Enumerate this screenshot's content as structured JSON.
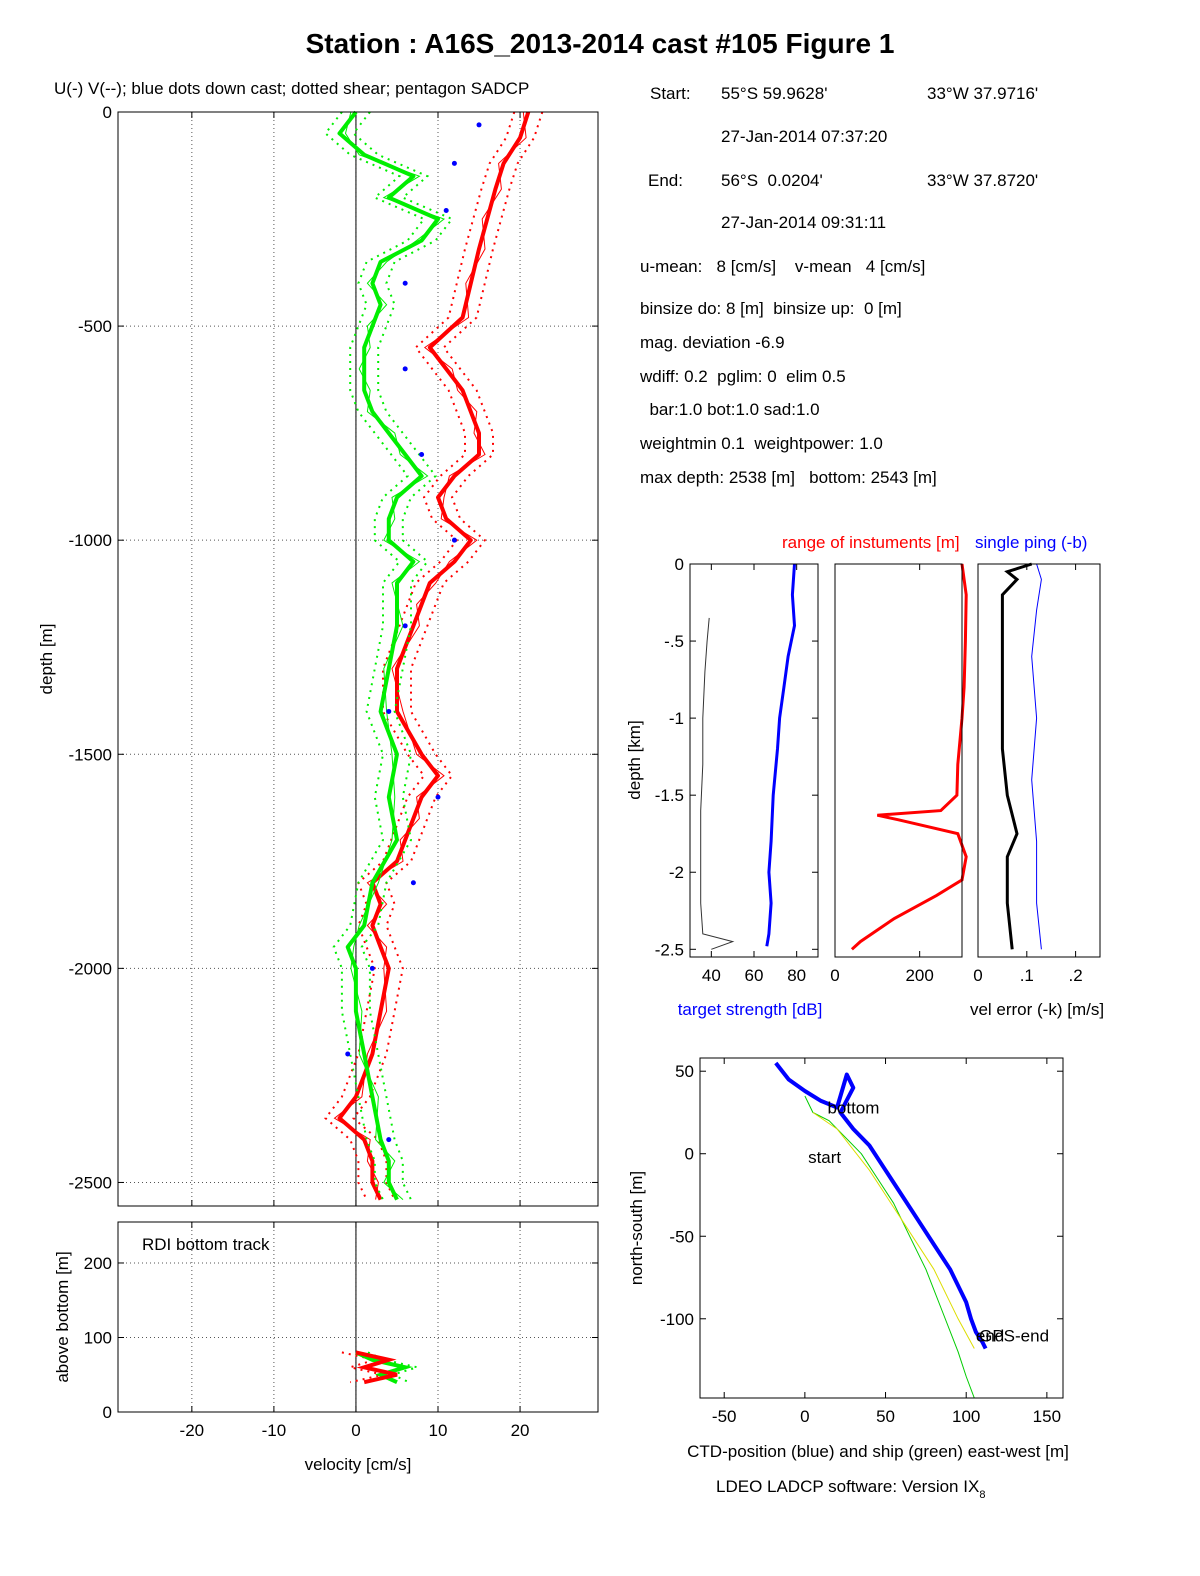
{
  "figure": {
    "title": "Station : A16S_2013-2014 cast #105  Figure 1",
    "subtitle": "U(-) V(--); blue dots down cast; dotted shear; pentagon SADCP",
    "footer": "LDEO LADCP software: Version IX",
    "footer_sub": "8"
  },
  "info": {
    "start_label": "Start:",
    "start_lat": "55°S 59.9628'",
    "start_lon": "33°W 37.9716'",
    "start_time": "27-Jan-2014 07:37:20",
    "end_label": "End:",
    "end_lat": "56°S  0.0204'",
    "end_lon": "33°W 37.8720'",
    "end_time": "27-Jan-2014 09:31:11",
    "means": "u-mean:   8 [cm/s]    v-mean   4 [cm/s]",
    "binsize": "binsize do: 8 [m]  binsize up:  0 [m]",
    "magdev": "mag. deviation -6.9",
    "wdiff": "wdiff: 0.2  pglim: 0  elim 0.5",
    "bar": "  bar:1.0 bot:1.0 sad:1.0",
    "weight": "weightmin 0.1  weightpower: 1.0",
    "depth": "max depth: 2538 [m]   bottom: 2543 [m]"
  },
  "chart_data": [
    {
      "type": "line",
      "id": "velocity-profile",
      "xlabel": "",
      "ylabel": "depth [m]",
      "xlim": [
        -29,
        29.5
      ],
      "ylim": [
        -2555,
        0
      ],
      "xticks": [
        -20,
        -10,
        0,
        10,
        20
      ],
      "yticks": [
        0,
        -500,
        -1000,
        -1500,
        -2000,
        -2500
      ],
      "grid": true,
      "colors": {
        "u": "#ff0000",
        "v": "#00ee00",
        "down": "#0000ff"
      },
      "series": [
        {
          "name": "U",
          "depth": [
            0,
            -60,
            -120,
            -180,
            -250,
            -320,
            -400,
            -480,
            -550,
            -600,
            -650,
            -700,
            -750,
            -800,
            -850,
            -900,
            -950,
            -1000,
            -1050,
            -1100,
            -1150,
            -1200,
            -1300,
            -1400,
            -1500,
            -1550,
            -1600,
            -1650,
            -1700,
            -1750,
            -1800,
            -1850,
            -1900,
            -1950,
            -2000,
            -2100,
            -2200,
            -2300,
            -2350,
            -2400,
            -2450,
            -2500,
            -2540
          ],
          "values": [
            21,
            20,
            18,
            17,
            16,
            15,
            14,
            13,
            9,
            11,
            13,
            14,
            15,
            15,
            12,
            10,
            11,
            14,
            12,
            9,
            8,
            7,
            5,
            5,
            8,
            10,
            8,
            7,
            6,
            5,
            2,
            3,
            2,
            3,
            4,
            3,
            2,
            0,
            -2,
            1,
            2,
            2,
            3
          ]
        },
        {
          "name": "V",
          "depth": [
            0,
            -50,
            -100,
            -150,
            -200,
            -250,
            -300,
            -350,
            -400,
            -450,
            -500,
            -550,
            -600,
            -650,
            -700,
            -750,
            -800,
            -850,
            -900,
            -950,
            -1000,
            -1050,
            -1100,
            -1200,
            -1300,
            -1400,
            -1500,
            -1600,
            -1700,
            -1800,
            -1900,
            -1950,
            -2000,
            -2100,
            -2200,
            -2300,
            -2400,
            -2450,
            -2500,
            -2540
          ],
          "values": [
            0,
            -2,
            1,
            7,
            4,
            10,
            8,
            3,
            2,
            3,
            2,
            1,
            1,
            1,
            2,
            4,
            6,
            8,
            5,
            4,
            4,
            7,
            5,
            5,
            4,
            3,
            5,
            4,
            5,
            2,
            1,
            -1,
            0,
            0,
            1,
            2,
            3,
            4,
            4,
            5
          ]
        },
        {
          "name": "down",
          "depth": [
            -30,
            -120,
            -230,
            -400,
            -600,
            -800,
            -1000,
            -1200,
            -1400,
            -1600,
            -1800,
            -2000,
            -2200,
            -2400
          ],
          "values": [
            15,
            12,
            11,
            6,
            6,
            8,
            12,
            6,
            4,
            10,
            7,
            2,
            -1,
            4
          ]
        }
      ]
    },
    {
      "type": "line",
      "id": "bottom-track",
      "title": "RDI bottom track",
      "xlabel": "velocity [cm/s]",
      "ylabel": "above bottom [m]",
      "xlim": [
        -29,
        29.5
      ],
      "ylim": [
        0,
        255
      ],
      "xticks": [
        -20,
        -10,
        0,
        10,
        20
      ],
      "yticks": [
        0,
        100,
        200
      ],
      "grid": true,
      "series": [
        {
          "name": "U",
          "hab": [
            80,
            70,
            60,
            50,
            40
          ],
          "values": [
            0,
            4,
            1,
            5,
            1
          ]
        },
        {
          "name": "V",
          "hab": [
            80,
            70,
            60,
            50,
            40
          ],
          "values": [
            0,
            2,
            6,
            3,
            5
          ]
        }
      ]
    },
    {
      "type": "line",
      "id": "target-strength",
      "xlabel": "target strength [dB]",
      "ylabel": "depth [km]",
      "xlim": [
        30,
        90
      ],
      "ylim": [
        -2.55,
        0
      ],
      "xticks": [
        40,
        60,
        80
      ],
      "yticks": [
        0,
        -0.5,
        -1,
        -1.5,
        -2,
        -2.5
      ],
      "grid": false,
      "series": [
        {
          "name": "up",
          "color": "#0000ff",
          "depth": [
            0,
            -0.2,
            -0.4,
            -0.6,
            -0.8,
            -1.0,
            -1.2,
            -1.5,
            -1.8,
            -2.0,
            -2.2,
            -2.4,
            -2.48
          ],
          "values": [
            79,
            78,
            79,
            76,
            74,
            72,
            71,
            69,
            68,
            67,
            68,
            67,
            66
          ]
        },
        {
          "name": "down",
          "color": "#333333",
          "depth": [
            -0.35,
            -0.5,
            -0.7,
            -1.0,
            -1.3,
            -1.6,
            -1.9,
            -2.2,
            -2.4,
            -2.45,
            -2.5
          ],
          "values": [
            39,
            38,
            37,
            36,
            36,
            35,
            35,
            35,
            36,
            50,
            40
          ]
        }
      ]
    },
    {
      "type": "line",
      "id": "range",
      "title": "range of instuments [m]",
      "xlim": [
        0,
        300
      ],
      "ylim": [
        -2.55,
        0
      ],
      "xticks": [
        0,
        200
      ],
      "grid": false,
      "series": [
        {
          "name": "range",
          "color": "#ff0000",
          "depth": [
            0,
            -0.2,
            -0.5,
            -0.8,
            -1.0,
            -1.3,
            -1.5,
            -1.6,
            -1.63,
            -1.66,
            -1.75,
            -1.9,
            -2.05,
            -2.15,
            -2.3,
            -2.45,
            -2.5
          ],
          "values": [
            300,
            310,
            308,
            305,
            300,
            290,
            288,
            250,
            100,
            150,
            290,
            310,
            300,
            240,
            140,
            60,
            40
          ]
        }
      ]
    },
    {
      "type": "line",
      "id": "vel-error",
      "title": "single ping (-b)",
      "xlabel": "vel error (-k) [m/s]",
      "xlim": [
        0,
        0.25
      ],
      "ylim": [
        -2.55,
        0
      ],
      "xticks": [
        0,
        0.1,
        0.2
      ],
      "grid": false,
      "series": [
        {
          "name": "vel error",
          "color": "#000000",
          "depth": [
            0,
            -0.05,
            -0.1,
            -0.2,
            -0.4,
            -0.8,
            -1.2,
            -1.5,
            -1.75,
            -1.9,
            -2.2,
            -2.5
          ],
          "values": [
            0.11,
            0.06,
            0.08,
            0.05,
            0.05,
            0.05,
            0.05,
            0.06,
            0.08,
            0.06,
            0.06,
            0.07
          ]
        },
        {
          "name": "single ping",
          "color": "#0000ff",
          "depth": [
            0,
            -0.1,
            -0.3,
            -0.6,
            -1.0,
            -1.4,
            -1.8,
            -2.2,
            -2.5
          ],
          "values": [
            0.12,
            0.13,
            0.12,
            0.11,
            0.12,
            0.11,
            0.12,
            0.12,
            0.13
          ]
        }
      ]
    },
    {
      "type": "line",
      "id": "position",
      "xlabel": "CTD-position (blue) and ship (green) east-west [m]",
      "ylabel": "north-south [m]",
      "xlim": [
        -65,
        160
      ],
      "ylim": [
        -148,
        58
      ],
      "xticks": [
        -50,
        0,
        50,
        100,
        150
      ],
      "yticks": [
        50,
        0,
        -50,
        -100
      ],
      "grid": false,
      "annotations": [
        "bottom",
        "start",
        "end",
        "GPS-end"
      ],
      "series": [
        {
          "name": "CTD",
          "color": "#0000ff",
          "x": [
            -18,
            -10,
            0,
            10,
            20,
            26,
            30,
            22,
            30,
            40,
            50,
            60,
            70,
            80,
            90,
            100,
            103,
            106,
            110,
            112
          ],
          "y": [
            55,
            45,
            38,
            32,
            28,
            48,
            40,
            25,
            15,
            5,
            -10,
            -25,
            -40,
            -55,
            -70,
            -90,
            -100,
            -108,
            -114,
            -118
          ]
        },
        {
          "name": "ship",
          "color": "#00cc00",
          "x": [
            0,
            5,
            15,
            25,
            35,
            45,
            55,
            65,
            75,
            85,
            95,
            100,
            105
          ],
          "y": [
            35,
            25,
            20,
            10,
            0,
            -15,
            -30,
            -50,
            -70,
            -95,
            -120,
            -135,
            -148
          ]
        },
        {
          "name": "yellow",
          "color": "#dddd00",
          "x": [
            5,
            20,
            40,
            60,
            80,
            95,
            105
          ],
          "y": [
            25,
            15,
            -10,
            -40,
            -70,
            -100,
            -118
          ]
        }
      ]
    }
  ]
}
